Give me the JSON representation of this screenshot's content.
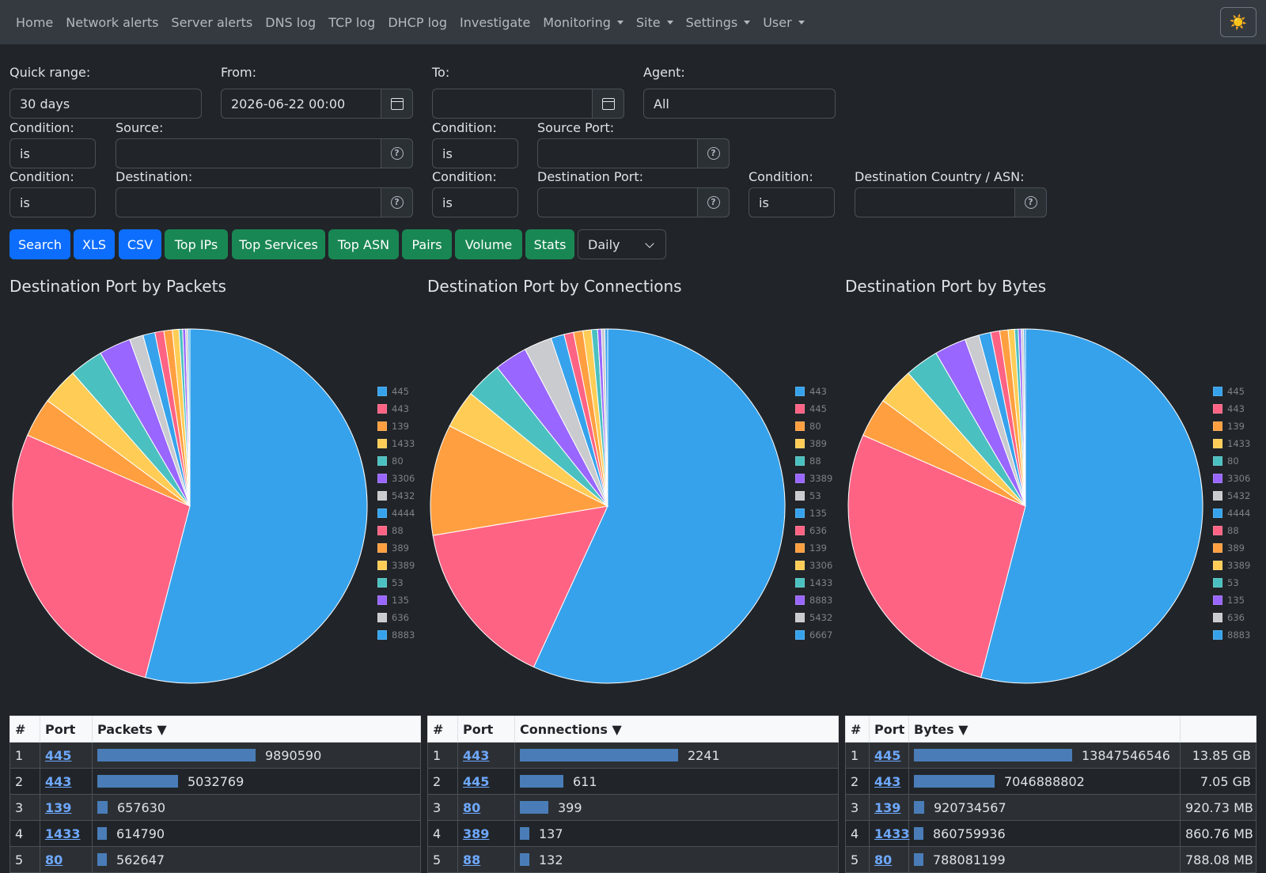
{
  "nav": {
    "items": [
      {
        "label": "Home",
        "dropdown": false
      },
      {
        "label": "Network alerts",
        "dropdown": false
      },
      {
        "label": "Server alerts",
        "dropdown": false
      },
      {
        "label": "DNS log",
        "dropdown": false
      },
      {
        "label": "TCP log",
        "dropdown": false
      },
      {
        "label": "DHCP log",
        "dropdown": false
      },
      {
        "label": "Investigate",
        "dropdown": false
      },
      {
        "label": "Monitoring",
        "dropdown": true
      },
      {
        "label": "Site",
        "dropdown": true
      },
      {
        "label": "Settings",
        "dropdown": true
      },
      {
        "label": "User",
        "dropdown": true
      }
    ],
    "theme_icon": "☀️"
  },
  "form": {
    "quick_range_label": "Quick range:",
    "quick_range_value": "30 days",
    "from_label": "From:",
    "from_value": "2026-06-22 00:00",
    "to_label": "To:",
    "to_value": "",
    "agent_label": "Agent:",
    "agent_value": "All",
    "condition_label": "Condition:",
    "condition_value": "is",
    "source_label": "Source:",
    "source_port_label": "Source Port:",
    "destination_label": "Destination:",
    "destination_port_label": "Destination Port:",
    "dest_country_label": "Destination Country / ASN:",
    "help_glyph": "?"
  },
  "buttons": {
    "search": "Search",
    "xls": "XLS",
    "csv": "CSV",
    "top_ips": "Top IPs",
    "top_services": "Top Services",
    "top_asn": "Top ASN",
    "pairs": "Pairs",
    "volume": "Volume",
    "stats": "Stats",
    "interval": "Daily"
  },
  "colors": {
    "palette": [
      "#36a2eb",
      "#ff6384",
      "#ff9f40",
      "#ffcd56",
      "#4bc0c0",
      "#9966ff",
      "#c9cbcf"
    ],
    "bar": "#4a7db8",
    "link": "#6ea8fe"
  },
  "chart_data": [
    {
      "type": "pie",
      "title": "Destination Port by Packets",
      "categories": [
        "445",
        "443",
        "139",
        "1433",
        "80",
        "3306",
        "5432",
        "4444",
        "88",
        "389",
        "3389",
        "53",
        "135",
        "636",
        "8883"
      ],
      "values": [
        9890590,
        5032769,
        657630,
        614790,
        562647,
        530000,
        230000,
        200000,
        150000,
        140000,
        110000,
        60000,
        50000,
        40000,
        30000
      ],
      "legend": "right"
    },
    {
      "type": "pie",
      "title": "Destination Port by Connections",
      "categories": [
        "443",
        "445",
        "80",
        "389",
        "88",
        "3389",
        "53",
        "135",
        "636",
        "139",
        "3306",
        "1433",
        "8883",
        "5432",
        "6667"
      ],
      "values": [
        2241,
        611,
        399,
        137,
        132,
        118,
        100,
        48,
        34,
        34,
        30,
        22,
        14,
        12,
        10
      ],
      "legend": "right"
    },
    {
      "type": "pie",
      "title": "Destination Port by Bytes",
      "categories": [
        "445",
        "443",
        "139",
        "1433",
        "80",
        "3306",
        "5432",
        "4444",
        "88",
        "389",
        "3389",
        "53",
        "135",
        "636",
        "8883"
      ],
      "values": [
        13847546546,
        7046888802,
        920734567,
        860759936,
        788081199,
        740000000,
        330000000,
        280000000,
        210000000,
        195000000,
        150000000,
        85000000,
        70000000,
        55000000,
        42000000
      ],
      "legend": "right"
    }
  ],
  "tables": [
    {
      "headers": [
        "#",
        "Port",
        "Packets ▼"
      ],
      "rows": [
        {
          "rank": "1",
          "port": "445",
          "value": "9890590",
          "frac": 1.0
        },
        {
          "rank": "2",
          "port": "443",
          "value": "5032769",
          "frac": 0.509
        },
        {
          "rank": "3",
          "port": "139",
          "value": "657630",
          "frac": 0.066
        },
        {
          "rank": "4",
          "port": "1433",
          "value": "614790",
          "frac": 0.062
        },
        {
          "rank": "5",
          "port": "80",
          "value": "562647",
          "frac": 0.057
        }
      ]
    },
    {
      "headers": [
        "#",
        "Port",
        "Connections ▼"
      ],
      "rows": [
        {
          "rank": "1",
          "port": "443",
          "value": "2241",
          "frac": 1.0
        },
        {
          "rank": "2",
          "port": "445",
          "value": "611",
          "frac": 0.273
        },
        {
          "rank": "3",
          "port": "80",
          "value": "399",
          "frac": 0.178
        },
        {
          "rank": "4",
          "port": "389",
          "value": "137",
          "frac": 0.061
        },
        {
          "rank": "5",
          "port": "88",
          "value": "132",
          "frac": 0.059
        }
      ]
    },
    {
      "headers": [
        "#",
        "Port",
        "Bytes ▼",
        ""
      ],
      "rows": [
        {
          "rank": "1",
          "port": "445",
          "value": "13847546546",
          "human": "13.85 GB",
          "frac": 1.0
        },
        {
          "rank": "2",
          "port": "443",
          "value": "7046888802",
          "human": "7.05 GB",
          "frac": 0.509
        },
        {
          "rank": "3",
          "port": "139",
          "value": "920734567",
          "human": "920.73 MB",
          "frac": 0.066
        },
        {
          "rank": "4",
          "port": "1433",
          "value": "860759936",
          "human": "860.76 MB",
          "frac": 0.062
        },
        {
          "rank": "5",
          "port": "80",
          "value": "788081199",
          "human": "788.08 MB",
          "frac": 0.057
        }
      ]
    }
  ]
}
